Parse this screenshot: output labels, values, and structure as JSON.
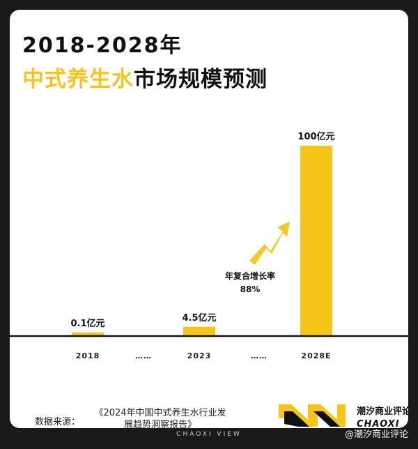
{
  "title_line1": "2018-2028年",
  "title_line2_highlight": "中式养生水",
  "title_line2_rest": "市场规模预测",
  "colors": {
    "accent": "#f5c518",
    "text": "#111111",
    "frame": "#1a1a1a"
  },
  "chart_data": {
    "type": "bar",
    "categories": [
      "2018",
      "……",
      "2023",
      "……",
      "2028E"
    ],
    "values": [
      0.1,
      null,
      4.5,
      null,
      100
    ],
    "data_labels": [
      "0.1亿元",
      "",
      "4.5亿元",
      "",
      "100亿元"
    ],
    "ylim": [
      0,
      100
    ],
    "grid": false,
    "legend": "none"
  },
  "cagr": {
    "label": "年复合增长率",
    "value": "88%",
    "icon": "growth-arrow-icon"
  },
  "source": {
    "label": "数据来源：",
    "text": "《2024年中国中式养生水行业发展趋势洞察报告》"
  },
  "brand": {
    "name_cn": "潮汐商业评论",
    "name_en": "CHAOXI"
  },
  "footer": {
    "text": "CHAOXI VIEW"
  },
  "watermark": {
    "text": "@潮汐商业评论"
  }
}
